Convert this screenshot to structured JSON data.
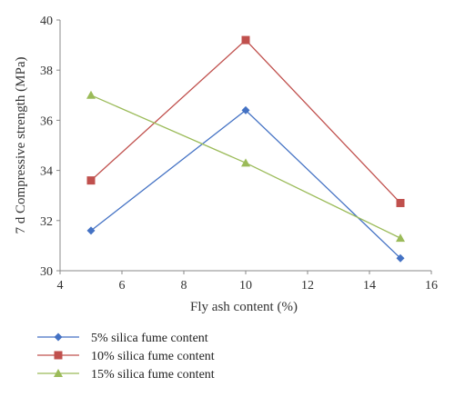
{
  "chart_data": {
    "type": "line",
    "title": "",
    "xlabel": "Fly ash content (%)",
    "ylabel": "7 d Compressive strength (MPa)",
    "xlim": [
      4,
      16
    ],
    "ylim": [
      30,
      40
    ],
    "xticks": [
      4,
      6,
      8,
      10,
      12,
      14,
      16
    ],
    "yticks": [
      30,
      32,
      34,
      36,
      38,
      40
    ],
    "grid": false,
    "legend_position": "bottom",
    "x": [
      5,
      10,
      15
    ],
    "series": [
      {
        "name": "5% silica fume content",
        "values": [
          31.6,
          36.4,
          30.5
        ],
        "color": "#4472C4",
        "marker": "diamond"
      },
      {
        "name": "10% silica fume content",
        "values": [
          33.6,
          39.2,
          32.7
        ],
        "color": "#C0504D",
        "marker": "square"
      },
      {
        "name": "15% silica fume content",
        "values": [
          37.0,
          34.3,
          31.3
        ],
        "color": "#9BBB59",
        "marker": "triangle"
      }
    ]
  }
}
